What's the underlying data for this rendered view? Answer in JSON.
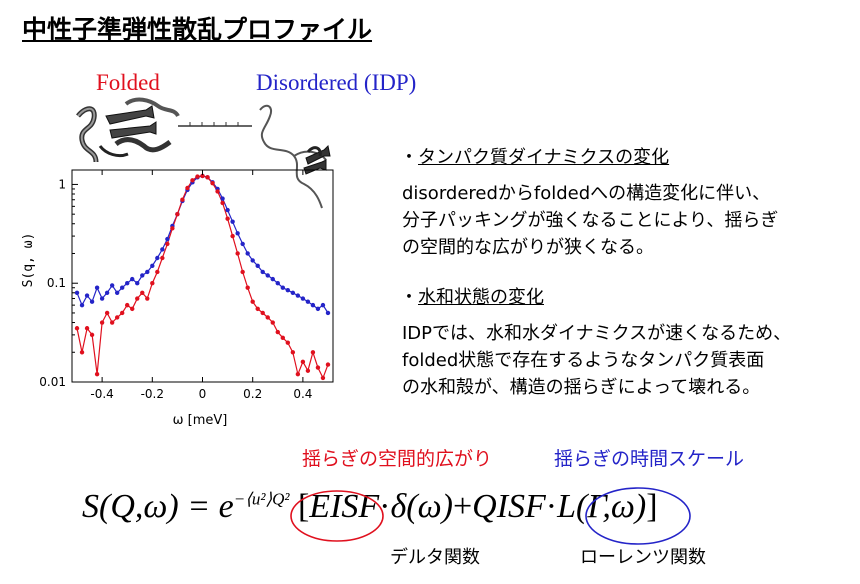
{
  "title": "中性子準弾性散乱プロファイル",
  "labels": {
    "folded": "Folded",
    "disordered": "Disordered (IDP)"
  },
  "colors": {
    "folded": "#e0101e",
    "disordered": "#2424c8"
  },
  "sections": [
    {
      "heading": "タンパク質ダイナミクスの変化",
      "lines": [
        "disorderedからfoldedへの構造変化に伴い、",
        "分子パッキングが強くなることにより、揺らぎ",
        "の空間的な広がりが狭くなる。"
      ]
    },
    {
      "heading": "水和状態の変化",
      "lines": [
        "IDPでは、水和水ダイナミクスが速くなるため、",
        "folded状態で存在するようなタンパク質表面",
        "の水和殻が、構造の揺らぎによって壊れる。"
      ]
    }
  ],
  "bullet_mark": "・",
  "equation": {
    "lhs": "S(Q,ω) = e",
    "exponent": "−⟨u²⟩Q²",
    "open_bracket": "[",
    "eisf": "EISF",
    "dot1": "·",
    "delta": "δ(ω)",
    "plus": "+",
    "qisf": "QISF",
    "dot2": "·",
    "lorentz": "L(Γ,ω)",
    "close_bracket": "]"
  },
  "annotations": {
    "spatial": "揺らぎの空間的広がり",
    "temporal": "揺らぎの時間スケール",
    "delta_fn": "デルタ関数",
    "lorentz_fn": "ローレンツ関数"
  },
  "chart_data": {
    "type": "line",
    "xlabel": "ω [meV]",
    "ylabel": "S(q, ω)",
    "xlim": [
      -0.52,
      0.52
    ],
    "ylim": [
      0.01,
      1.4
    ],
    "yscale": "log",
    "xticks": [
      -0.4,
      -0.2,
      0,
      0.2,
      0.4
    ],
    "xtick_labels": [
      "-0.4",
      "-0.2",
      "0",
      "0.2",
      "0.4"
    ],
    "yticks": [
      0.01,
      0.1,
      1
    ],
    "ytick_labels": [
      "0.01",
      "0.1",
      "1"
    ],
    "x": [
      -0.5,
      -0.48,
      -0.46,
      -0.44,
      -0.42,
      -0.4,
      -0.38,
      -0.36,
      -0.34,
      -0.32,
      -0.3,
      -0.28,
      -0.26,
      -0.24,
      -0.22,
      -0.2,
      -0.18,
      -0.16,
      -0.14,
      -0.12,
      -0.1,
      -0.08,
      -0.06,
      -0.04,
      -0.02,
      0,
      0.02,
      0.04,
      0.06,
      0.08,
      0.1,
      0.12,
      0.14,
      0.16,
      0.18,
      0.2,
      0.22,
      0.24,
      0.26,
      0.28,
      0.3,
      0.32,
      0.34,
      0.36,
      0.38,
      0.4,
      0.42,
      0.44,
      0.46,
      0.48,
      0.5
    ],
    "series": [
      {
        "color": "#2424c8",
        "values": [
          0.08,
          0.06,
          0.075,
          0.065,
          0.09,
          0.07,
          0.08,
          0.095,
          0.08,
          0.09,
          0.1,
          0.11,
          0.1,
          0.12,
          0.13,
          0.15,
          0.18,
          0.22,
          0.28,
          0.38,
          0.5,
          0.68,
          0.88,
          1.05,
          1.18,
          1.22,
          1.18,
          1.05,
          0.9,
          0.72,
          0.55,
          0.42,
          0.32,
          0.25,
          0.2,
          0.17,
          0.15,
          0.13,
          0.12,
          0.11,
          0.1,
          0.09,
          0.085,
          0.08,
          0.075,
          0.07,
          0.065,
          0.06,
          0.055,
          0.06,
          0.05
        ]
      },
      {
        "color": "#e0101e",
        "values": [
          0.035,
          0.02,
          0.035,
          0.03,
          0.012,
          0.04,
          0.05,
          0.04,
          0.045,
          0.05,
          0.06,
          0.055,
          0.07,
          0.08,
          0.07,
          0.1,
          0.13,
          0.18,
          0.25,
          0.36,
          0.5,
          0.7,
          0.92,
          1.1,
          1.2,
          1.22,
          1.18,
          1.03,
          0.85,
          0.65,
          0.45,
          0.3,
          0.2,
          0.13,
          0.09,
          0.065,
          0.055,
          0.05,
          0.045,
          0.04,
          0.032,
          0.028,
          0.025,
          0.02,
          0.012,
          0.016,
          0.013,
          0.02,
          0.014,
          0.011,
          0.015
        ]
      }
    ]
  }
}
